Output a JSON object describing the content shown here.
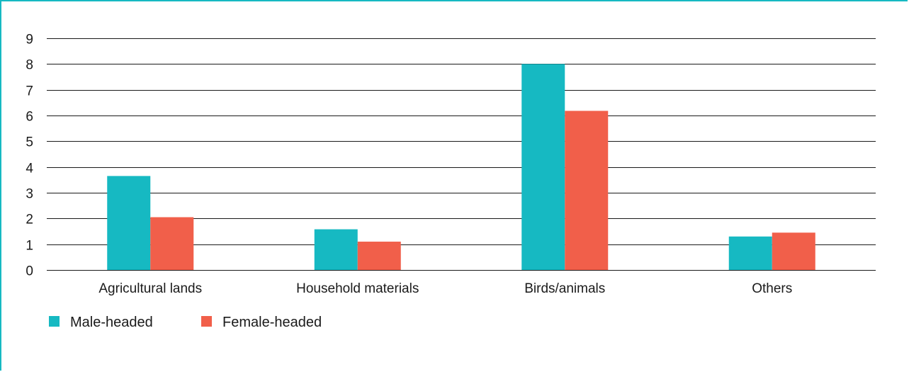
{
  "colors": {
    "frame": "#16b9c2",
    "male": "#16b9c2",
    "female": "#f15f4a",
    "grid": "#1a1a1a"
  },
  "chart_data": {
    "type": "bar",
    "title": "",
    "xlabel": "",
    "ylabel": "",
    "ylim": [
      0,
      9
    ],
    "yticks": [
      "0",
      "1",
      "2",
      "3",
      "4",
      "5",
      "6",
      "7",
      "8",
      "9"
    ],
    "grid": true,
    "legend_position": "bottom-left",
    "categories": [
      "Agricultural lands",
      "Household materials",
      "Birds/animals",
      "Others"
    ],
    "series": [
      {
        "name": "Male-headed",
        "color": "#16b9c2",
        "values": [
          3.65,
          1.58,
          8.0,
          1.3
        ]
      },
      {
        "name": "Female-headed",
        "color": "#f15f4a",
        "values": [
          2.05,
          1.1,
          6.18,
          1.45
        ]
      }
    ]
  }
}
